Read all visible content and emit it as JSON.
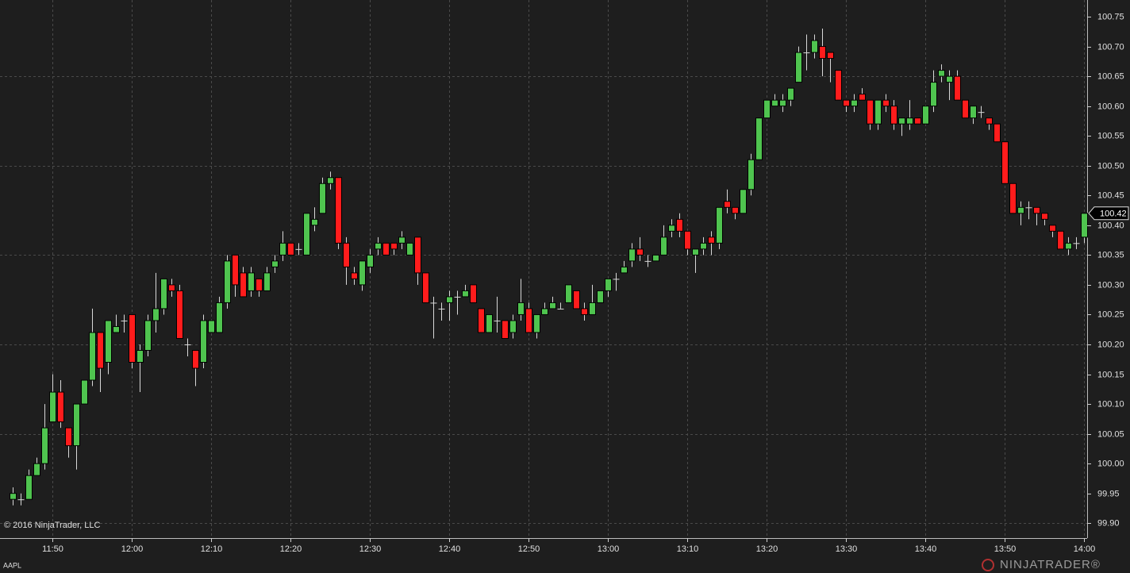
{
  "chart_data": {
    "type": "candlestick",
    "symbol": "AAPL",
    "copyright": "© 2016 NinjaTrader, LLC",
    "brand": "NINJATRADER®",
    "up_color": "#4fc44f",
    "down_color": "#ff1c1c",
    "grid": true,
    "last_price": 100.42,
    "x": [
      "11:45",
      "11:46",
      "11:47",
      "11:48",
      "11:49",
      "11:50",
      "11:51",
      "11:52",
      "11:53",
      "11:54",
      "11:55",
      "11:56",
      "11:57",
      "11:58",
      "11:59",
      "12:00",
      "12:01",
      "12:02",
      "12:03",
      "12:04",
      "12:05",
      "12:06",
      "12:07",
      "12:08",
      "12:09",
      "12:10",
      "12:11",
      "12:12",
      "12:13",
      "12:14",
      "12:15",
      "12:16",
      "12:17",
      "12:18",
      "12:19",
      "12:20",
      "12:21",
      "12:22",
      "12:23",
      "12:24",
      "12:25",
      "12:26",
      "12:27",
      "12:28",
      "12:29",
      "12:30",
      "12:31",
      "12:32",
      "12:33",
      "12:34",
      "12:35",
      "12:36",
      "12:37",
      "12:38",
      "12:39",
      "12:40",
      "12:41",
      "12:42",
      "12:43",
      "12:44",
      "12:45",
      "12:46",
      "12:47",
      "12:48",
      "12:49",
      "12:50",
      "12:51",
      "12:52",
      "12:53",
      "12:54",
      "12:55",
      "12:56",
      "12:57",
      "12:58",
      "12:59",
      "13:00",
      "13:01",
      "13:02",
      "13:03",
      "13:04",
      "13:05",
      "13:06",
      "13:07",
      "13:08",
      "13:09",
      "13:10",
      "13:11",
      "13:12",
      "13:13",
      "13:14",
      "13:15",
      "13:16",
      "13:17",
      "13:18",
      "13:19",
      "13:20",
      "13:21",
      "13:22",
      "13:23",
      "13:24",
      "13:25",
      "13:26",
      "13:27",
      "13:28",
      "13:29",
      "13:30",
      "13:31",
      "13:32",
      "13:33",
      "13:34",
      "13:35",
      "13:36",
      "13:37",
      "13:38",
      "13:39",
      "13:40",
      "13:41",
      "13:42",
      "13:43",
      "13:44",
      "13:45",
      "13:46",
      "13:47",
      "13:48",
      "13:49",
      "13:50",
      "13:51",
      "13:52",
      "13:53",
      "13:54",
      "13:55",
      "13:56",
      "13:57",
      "13:58",
      "13:59",
      "14:00"
    ],
    "open": [
      99.94,
      99.94,
      99.94,
      99.98,
      100.0,
      100.07,
      100.12,
      100.06,
      100.03,
      100.1,
      100.14,
      100.22,
      100.17,
      100.22,
      100.24,
      100.25,
      100.17,
      100.19,
      100.24,
      100.26,
      100.3,
      100.29,
      100.2,
      100.19,
      100.17,
      100.22,
      100.22,
      100.27,
      100.35,
      100.32,
      100.29,
      100.31,
      100.29,
      100.33,
      100.35,
      100.37,
      100.36,
      100.35,
      100.4,
      100.42,
      100.47,
      100.48,
      100.37,
      100.32,
      100.3,
      100.33,
      100.36,
      100.37,
      100.37,
      100.37,
      100.35,
      100.38,
      100.32,
      100.27,
      100.26,
      100.27,
      100.28,
      100.28,
      100.3,
      100.26,
      100.22,
      100.24,
      100.24,
      100.22,
      100.25,
      100.26,
      100.22,
      100.25,
      100.26,
      100.26,
      100.27,
      100.29,
      100.26,
      100.25,
      100.27,
      100.29,
      100.31,
      100.32,
      100.34,
      100.36,
      100.34,
      100.34,
      100.35,
      100.39,
      100.41,
      100.39,
      100.35,
      100.36,
      100.38,
      100.37,
      100.44,
      100.43,
      100.42,
      100.46,
      100.51,
      100.58,
      100.6,
      100.6,
      100.61,
      100.64,
      100.69,
      100.69,
      100.7,
      100.69,
      100.66,
      100.61,
      100.6,
      100.62,
      100.61,
      100.57,
      100.61,
      100.6,
      100.57,
      100.57,
      100.58,
      100.57,
      100.6,
      100.65,
      100.64,
      100.65,
      100.61,
      100.58,
      100.59,
      100.58,
      100.57,
      100.54,
      100.47,
      100.42,
      100.43,
      100.43,
      100.42,
      100.4,
      100.39,
      100.36,
      100.37,
      100.38
    ],
    "high": [
      99.96,
      99.95,
      99.99,
      100.01,
      100.1,
      100.15,
      100.14,
      100.06,
      100.1,
      100.14,
      100.26,
      100.22,
      100.24,
      100.25,
      100.25,
      100.25,
      100.2,
      100.25,
      100.32,
      100.31,
      100.31,
      100.3,
      100.21,
      100.19,
      100.25,
      100.24,
      100.28,
      100.35,
      100.35,
      100.33,
      100.33,
      100.31,
      100.33,
      100.35,
      100.39,
      100.37,
      100.37,
      100.42,
      100.43,
      100.48,
      100.49,
      100.48,
      100.38,
      100.33,
      100.34,
      100.36,
      100.38,
      100.37,
      100.37,
      100.39,
      100.37,
      100.38,
      100.32,
      100.28,
      100.27,
      100.29,
      100.29,
      100.3,
      100.3,
      100.26,
      100.25,
      100.28,
      100.24,
      100.25,
      100.31,
      100.27,
      100.25,
      100.27,
      100.28,
      100.27,
      100.3,
      100.29,
      100.27,
      100.3,
      100.29,
      100.31,
      100.32,
      100.34,
      100.37,
      100.38,
      100.35,
      100.35,
      100.4,
      100.41,
      100.42,
      100.39,
      100.36,
      100.38,
      100.39,
      100.43,
      100.46,
      100.43,
      100.46,
      100.52,
      100.58,
      100.61,
      100.62,
      100.62,
      100.63,
      100.7,
      100.72,
      100.72,
      100.73,
      100.69,
      100.66,
      100.61,
      100.62,
      100.63,
      100.61,
      100.61,
      100.62,
      100.61,
      100.58,
      100.61,
      100.58,
      100.6,
      100.66,
      100.67,
      100.66,
      100.66,
      100.61,
      100.6,
      100.6,
      100.58,
      100.57,
      100.54,
      100.47,
      100.44,
      100.44,
      100.43,
      100.42,
      100.4,
      100.39,
      100.38,
      100.38,
      100.42
    ],
    "low": [
      99.93,
      99.93,
      99.94,
      99.98,
      99.99,
      100.07,
      100.06,
      100.01,
      99.99,
      100.1,
      100.13,
      100.12,
      100.15,
      100.22,
      100.22,
      100.16,
      100.12,
      100.18,
      100.22,
      100.25,
      100.28,
      100.21,
      100.18,
      100.13,
      100.16,
      100.22,
      100.22,
      100.26,
      100.28,
      100.28,
      100.28,
      100.28,
      100.29,
      100.32,
      100.34,
      100.35,
      100.35,
      100.35,
      100.39,
      100.42,
      100.46,
      100.36,
      100.3,
      100.3,
      100.29,
      100.32,
      100.35,
      100.35,
      100.35,
      100.36,
      100.35,
      100.3,
      100.27,
      100.21,
      100.24,
      100.24,
      100.25,
      100.28,
      100.27,
      100.22,
      100.22,
      100.22,
      100.21,
      100.21,
      100.24,
      100.22,
      100.21,
      100.25,
      100.26,
      100.26,
      100.27,
      100.26,
      100.24,
      100.25,
      100.27,
      100.28,
      100.29,
      100.32,
      100.33,
      100.34,
      100.33,
      100.34,
      100.35,
      100.38,
      100.38,
      100.35,
      100.32,
      100.35,
      100.35,
      100.36,
      100.42,
      100.41,
      100.42,
      100.45,
      100.51,
      100.58,
      100.6,
      100.59,
      100.6,
      100.64,
      100.66,
      100.68,
      100.65,
      100.64,
      100.61,
      100.59,
      100.59,
      100.61,
      100.56,
      100.56,
      100.59,
      100.56,
      100.55,
      100.56,
      100.57,
      100.57,
      100.59,
      100.64,
      100.61,
      100.61,
      100.58,
      100.57,
      100.58,
      100.56,
      100.54,
      100.47,
      100.42,
      100.4,
      100.41,
      100.4,
      100.4,
      100.38,
      100.36,
      100.35,
      100.36,
      100.37
    ],
    "close": [
      99.95,
      99.94,
      99.98,
      100.0,
      100.06,
      100.12,
      100.07,
      100.03,
      100.1,
      100.14,
      100.22,
      100.16,
      100.24,
      100.23,
      100.24,
      100.17,
      100.19,
      100.24,
      100.26,
      100.31,
      100.29,
      100.21,
      100.2,
      100.16,
      100.24,
      100.24,
      100.27,
      100.34,
      100.3,
      100.28,
      100.32,
      100.29,
      100.32,
      100.34,
      100.37,
      100.35,
      100.36,
      100.42,
      100.41,
      100.47,
      100.48,
      100.37,
      100.33,
      100.31,
      100.34,
      100.35,
      100.37,
      100.35,
      100.36,
      100.38,
      100.37,
      100.32,
      100.27,
      100.27,
      100.26,
      100.28,
      100.28,
      100.29,
      100.27,
      100.22,
      100.25,
      100.24,
      100.21,
      100.24,
      100.27,
      100.22,
      100.25,
      100.26,
      100.27,
      100.26,
      100.3,
      100.26,
      100.25,
      100.27,
      100.29,
      100.31,
      100.31,
      100.33,
      100.36,
      100.35,
      100.34,
      100.35,
      100.38,
      100.4,
      100.39,
      100.36,
      100.36,
      100.37,
      100.37,
      100.43,
      100.43,
      100.42,
      100.46,
      100.51,
      100.58,
      100.61,
      100.61,
      100.61,
      100.63,
      100.69,
      100.69,
      100.71,
      100.68,
      100.68,
      100.61,
      100.6,
      100.61,
      100.61,
      100.57,
      100.61,
      100.6,
      100.57,
      100.58,
      100.58,
      100.57,
      100.6,
      100.64,
      100.66,
      100.65,
      100.61,
      100.58,
      100.6,
      100.59,
      100.57,
      100.54,
      100.47,
      100.42,
      100.43,
      100.43,
      100.42,
      100.41,
      100.39,
      100.36,
      100.37,
      100.37,
      100.42
    ],
    "xticks": [
      "11:50",
      "12:00",
      "12:10",
      "12:20",
      "12:30",
      "12:40",
      "12:50",
      "13:00",
      "13:10",
      "13:20",
      "13:30",
      "13:40",
      "13:50",
      "14:00"
    ],
    "ylim": [
      99.875,
      100.778
    ],
    "yticks": [
      {
        "value": 99.9,
        "label": "99.90"
      },
      99.95,
      {
        "value": 100.0,
        "label": "100.00"
      },
      100.05,
      {
        "value": 100.1,
        "label": "100.10"
      },
      100.15,
      {
        "value": 100.2,
        "label": "100.20"
      },
      100.25,
      {
        "value": 100.3,
        "label": "100.30"
      },
      100.35,
      {
        "value": 100.4,
        "label": "100.40"
      },
      100.45,
      {
        "value": 100.5,
        "label": "100.50"
      },
      100.55,
      {
        "value": 100.6,
        "label": "100.60"
      },
      100.65,
      {
        "value": 100.7,
        "label": "100.70"
      },
      100.75
    ]
  }
}
